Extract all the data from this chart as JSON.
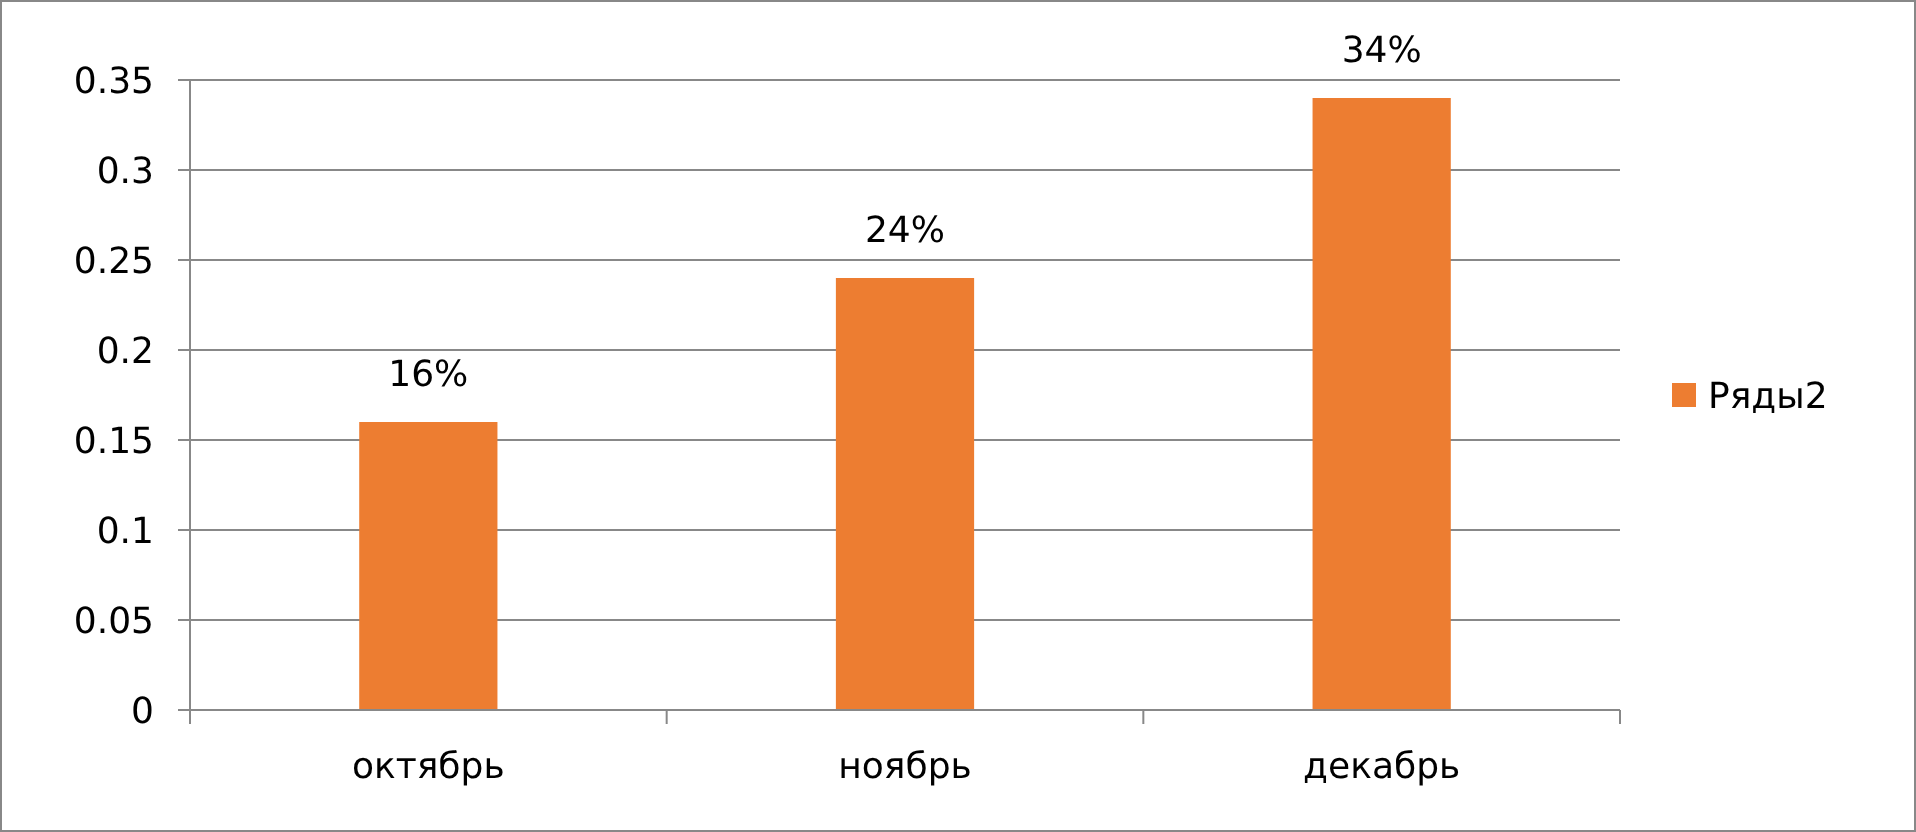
{
  "chart_data": {
    "type": "bar",
    "categories": [
      "октябрь",
      "ноябрь",
      "декабрь"
    ],
    "series": [
      {
        "name": "Ряды2",
        "color": "#ed7d31",
        "values": [
          0.16,
          0.24,
          0.34
        ],
        "value_labels": [
          "16%",
          "24%",
          "34%"
        ]
      }
    ],
    "ylim": [
      0,
      0.35
    ],
    "yticks": [
      0,
      0.05,
      0.1,
      0.15,
      0.2,
      0.25,
      0.3,
      0.35
    ],
    "grid": "y",
    "legend": "right"
  }
}
